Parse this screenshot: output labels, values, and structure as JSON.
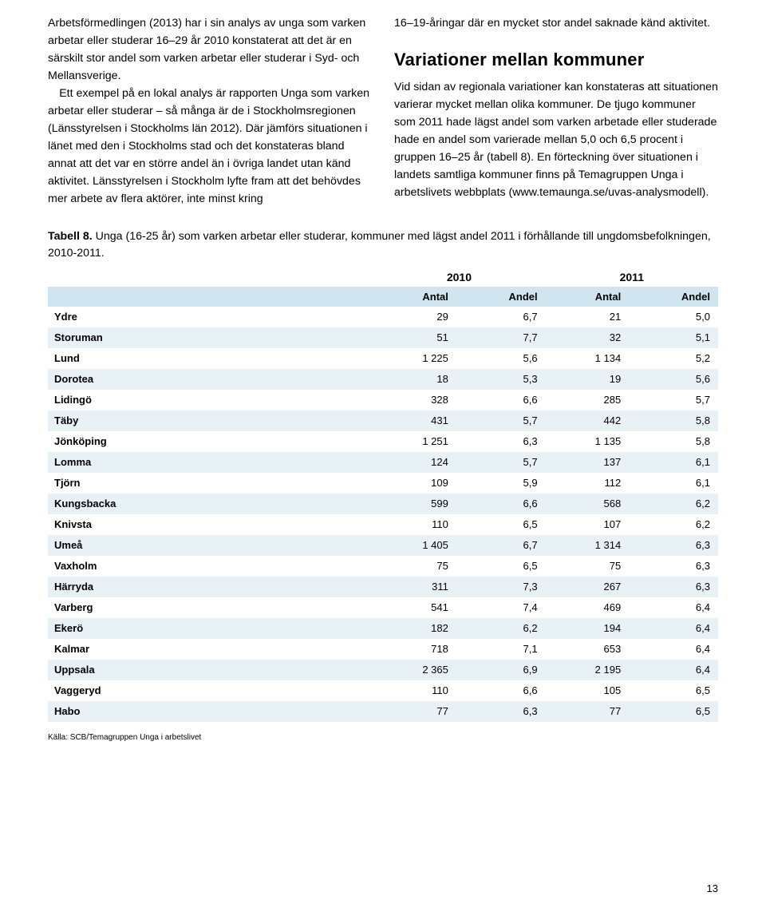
{
  "left_column": {
    "p1": "Arbetsförmedlingen (2013) har i sin analys av unga som varken arbetar eller studerar 16–29 år 2010 konstaterat att det är en särskilt stor andel som varken arbetar eller studerar i Syd- och Mellansverige.",
    "p2": "Ett exempel på en lokal analys är rapporten Unga som varken arbetar eller studerar – så många är de i Stockholmsregionen (Länsstyrelsen i Stockholms län 2012). Där jämförs situationen i länet med den i Stockholms stad och det konstateras bland annat att det var en större andel än i övriga landet utan känd aktivitet. Länsstyrelsen i Stockholm lyfte fram att det behövdes mer arbete av flera aktörer, inte minst kring"
  },
  "right_column": {
    "p1": "16–19-åringar där en mycket stor andel saknade känd aktivitet.",
    "heading": "Variationer mellan kommuner",
    "p2": "Vid sidan av regionala variationer kan konstateras att situationen varierar mycket mellan olika kommuner. De tjugo kommuner som 2011 hade lägst andel som varken arbetade eller studerade hade en andel som varierade mellan 5,0 och 6,5 procent i gruppen 16–25 år (tabell 8). En förteckning över situationen i landets samtliga kommuner finns på Temagruppen Unga i arbetslivets webbplats (www.temaunga.se/uvas-analysmodell)."
  },
  "table": {
    "title_bold": "Tabell 8.",
    "title_rest": " Unga (16-25 år) som varken arbetar eller studerar, kommuner med lägst andel 2011 i förhållande till ungdomsbefolkningen, 2010-2011.",
    "year1": "2010",
    "year2": "2011",
    "col_name": "",
    "col_antal": "Antal",
    "col_andel": "Andel",
    "rows": [
      {
        "name": "Ydre",
        "a1": "29",
        "d1": "6,7",
        "a2": "21",
        "d2": "5,0",
        "shade": false
      },
      {
        "name": "Storuman",
        "a1": "51",
        "d1": "7,7",
        "a2": "32",
        "d2": "5,1",
        "shade": true
      },
      {
        "name": "Lund",
        "a1": "1 225",
        "d1": "5,6",
        "a2": "1 134",
        "d2": "5,2",
        "shade": false
      },
      {
        "name": "Dorotea",
        "a1": "18",
        "d1": "5,3",
        "a2": "19",
        "d2": "5,6",
        "shade": true
      },
      {
        "name": "Lidingö",
        "a1": "328",
        "d1": "6,6",
        "a2": "285",
        "d2": "5,7",
        "shade": false
      },
      {
        "name": "Täby",
        "a1": "431",
        "d1": "5,7",
        "a2": "442",
        "d2": "5,8",
        "shade": true
      },
      {
        "name": "Jönköping",
        "a1": "1 251",
        "d1": "6,3",
        "a2": "1 135",
        "d2": "5,8",
        "shade": false
      },
      {
        "name": "Lomma",
        "a1": "124",
        "d1": "5,7",
        "a2": "137",
        "d2": "6,1",
        "shade": true
      },
      {
        "name": "Tjörn",
        "a1": "109",
        "d1": "5,9",
        "a2": "112",
        "d2": "6,1",
        "shade": false
      },
      {
        "name": "Kungsbacka",
        "a1": "599",
        "d1": "6,6",
        "a2": "568",
        "d2": "6,2",
        "shade": true
      },
      {
        "name": "Knivsta",
        "a1": "110",
        "d1": "6,5",
        "a2": "107",
        "d2": "6,2",
        "shade": false
      },
      {
        "name": "Umeå",
        "a1": "1 405",
        "d1": "6,7",
        "a2": "1 314",
        "d2": "6,3",
        "shade": true
      },
      {
        "name": "Vaxholm",
        "a1": "75",
        "d1": "6,5",
        "a2": "75",
        "d2": "6,3",
        "shade": false
      },
      {
        "name": "Härryda",
        "a1": "311",
        "d1": "7,3",
        "a2": "267",
        "d2": "6,3",
        "shade": true
      },
      {
        "name": "Varberg",
        "a1": "541",
        "d1": "7,4",
        "a2": "469",
        "d2": "6,4",
        "shade": false
      },
      {
        "name": "Ekerö",
        "a1": "182",
        "d1": "6,2",
        "a2": "194",
        "d2": "6,4",
        "shade": true
      },
      {
        "name": "Kalmar",
        "a1": "718",
        "d1": "7,1",
        "a2": "653",
        "d2": "6,4",
        "shade": false
      },
      {
        "name": "Uppsala",
        "a1": "2 365",
        "d1": "6,9",
        "a2": "2 195",
        "d2": "6,4",
        "shade": true
      },
      {
        "name": "Vaggeryd",
        "a1": "110",
        "d1": "6,6",
        "a2": "105",
        "d2": "6,5",
        "shade": false
      },
      {
        "name": "Habo",
        "a1": "77",
        "d1": "6,3",
        "a2": "77",
        "d2": "6,5",
        "shade": true
      }
    ]
  },
  "source": "Källa: SCB/Temagruppen Unga i arbetslivet",
  "page": "13",
  "colors": {
    "header_bg": "#cfe5ef",
    "row_shade": "#e7f1f6",
    "text": "#000000",
    "bg": "#ffffff"
  }
}
